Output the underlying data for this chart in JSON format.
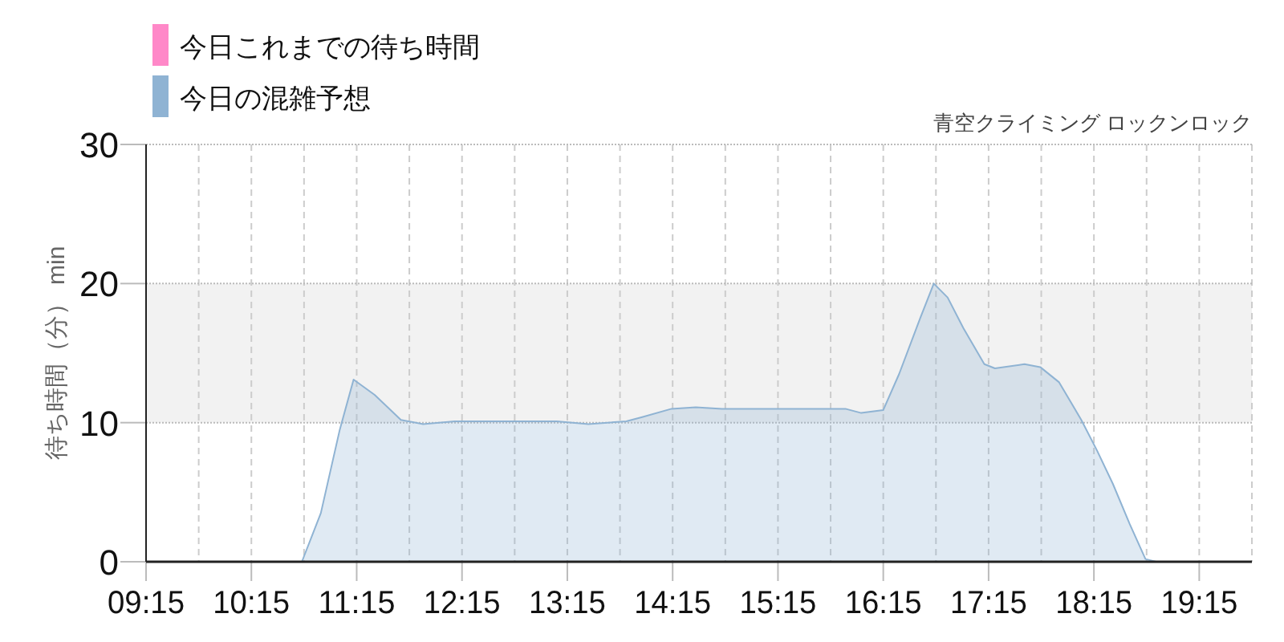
{
  "chart_data": {
    "type": "area",
    "title": "青空クライミング ロックンロック",
    "ylabel": "待ち時間（分） min",
    "legend": "top left",
    "grid": true,
    "xlim": [
      9.25,
      19.75
    ],
    "ylim": [
      0,
      30
    ],
    "yticks": [
      0,
      10,
      20,
      30
    ],
    "xticks": [
      {
        "value": 9.25,
        "label": "09:15"
      },
      {
        "value": 9.75,
        "label": null
      },
      {
        "value": 10.25,
        "label": "10:15"
      },
      {
        "value": 10.75,
        "label": null
      },
      {
        "value": 11.25,
        "label": "11:15"
      },
      {
        "value": 11.75,
        "label": null
      },
      {
        "value": 12.25,
        "label": "12:15"
      },
      {
        "value": 12.75,
        "label": null
      },
      {
        "value": 13.25,
        "label": "13:15"
      },
      {
        "value": 13.75,
        "label": null
      },
      {
        "value": 14.25,
        "label": "14:15"
      },
      {
        "value": 14.75,
        "label": null
      },
      {
        "value": 15.25,
        "label": "15:15"
      },
      {
        "value": 15.75,
        "label": null
      },
      {
        "value": 16.25,
        "label": "16:15"
      },
      {
        "value": 16.75,
        "label": null
      },
      {
        "value": 17.25,
        "label": "17:15"
      },
      {
        "value": 17.75,
        "label": null
      },
      {
        "value": 18.25,
        "label": "18:15"
      },
      {
        "value": 18.75,
        "label": null
      },
      {
        "value": 19.25,
        "label": "19:15"
      },
      {
        "value": 19.75,
        "label": null
      }
    ],
    "bands": [
      {
        "axis": "y",
        "from": 10,
        "to": 20,
        "color": "#f2f2f2"
      }
    ],
    "series": [
      {
        "name": "今日これまでの待ち時間",
        "color": "#ff88c8"
      },
      {
        "name": "今日の混雑予想",
        "color": "#8fb3d3",
        "x": [
          9.25,
          10.25,
          10.4,
          10.61,
          10.73,
          10.91,
          11.09,
          11.22,
          11.42,
          11.67,
          11.88,
          12.18,
          13.15,
          13.45,
          13.81,
          13.96,
          14.24,
          14.47,
          14.72,
          15.89,
          16.04,
          16.25,
          16.4,
          16.6,
          16.73,
          16.86,
          17.01,
          17.21,
          17.31,
          17.59,
          17.74,
          17.92,
          18.13,
          18.28,
          18.43,
          18.59,
          18.74,
          18.84,
          19.04,
          19.24,
          19.75
        ],
        "values": [
          0,
          0,
          0,
          0,
          0,
          3.5,
          9.5,
          13.1,
          12,
          10.2,
          9.9,
          10.1,
          10.1,
          9.9,
          10.1,
          10.4,
          11,
          11.1,
          11,
          11,
          10.7,
          10.9,
          13.5,
          17.5,
          20,
          19,
          16.8,
          14.2,
          13.9,
          14.2,
          14,
          12.9,
          10.2,
          8,
          5.6,
          2.7,
          0.2,
          0,
          0,
          0,
          0
        ]
      }
    ]
  }
}
